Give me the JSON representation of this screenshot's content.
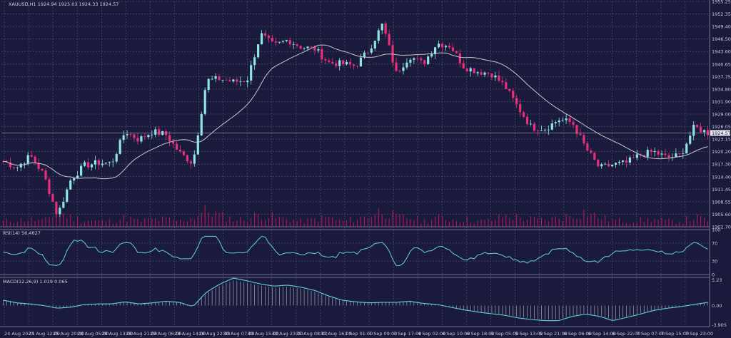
{
  "chart_data": {
    "type": "candlestick",
    "symbol_header": "XAUUSD,H1  1924.94 1925.03 1924.33 1924.57",
    "current_price_label": "1924.57",
    "current_price": 1924.57,
    "colors": {
      "background": "#1a1b3c",
      "grid": "#55577a",
      "bull": "#8fe6e6",
      "bear": "#e8307a",
      "ma": "#c8c8c8",
      "indicator_line": "#62d0e0",
      "volume": "#c2185b",
      "histogram": "#c8c8d0"
    },
    "price_axis": {
      "min": 1902.7,
      "max": 1955.25,
      "ticks": [
        "1955.25",
        "1952.35",
        "1949.40",
        "1946.50",
        "1943.60",
        "1940.65",
        "1937.75",
        "1934.80",
        "1931.90",
        "1929.00",
        "1926.05",
        "1923.15",
        "1920.20",
        "1917.30",
        "1914.40",
        "1911.45",
        "1908.55",
        "1905.60",
        "1902.70"
      ]
    },
    "time_labels": [
      "24 Aug 2023",
      "25 Aug 12:00",
      "25 Aug 20:00",
      "28 Aug 05:00",
      "28 Aug 13:00",
      "28 Aug 21:00",
      "29 Aug 06:00",
      "29 Aug 14:00",
      "29 Aug 22:00",
      "30 Aug 07:00",
      "30 Aug 15:00",
      "30 Aug 23:00",
      "31 Aug 08:00",
      "31 Aug 16:00",
      "1 Sep 01:00",
      "1 Sep 09:00",
      "1 Sep 17:00",
      "4 Sep 02:00",
      "4 Sep 10:00",
      "4 Sep 18:00",
      "5 Sep 05:00",
      "5 Sep 13:00",
      "5 Sep 21:00",
      "6 Sep 06:00",
      "6 Sep 14:00",
      "6 Sep 22:00",
      "7 Sep 07:00",
      "7 Sep 15:00",
      "7 Sep 23:00"
    ],
    "close_anchors": [
      1918.0,
      1916.5,
      1919.3,
      1914.8,
      1905.3,
      1913.8,
      1917.0,
      1917.6,
      1917.5,
      1925.0,
      1923.0,
      1924.9,
      1924.2,
      1920.0,
      1917.5,
      1936.8,
      1937.2,
      1936.5,
      1936.9,
      1947.6,
      1944.9,
      1946.3,
      1944.6,
      1944.2,
      1941.0,
      1940.7,
      1940.2,
      1944.0,
      1950.0,
      1938.5,
      1942.5,
      1940.7,
      1945.5,
      1944.9,
      1940.0,
      1938.9,
      1938.5,
      1935.6,
      1930.5,
      1925.8,
      1925.6,
      1927.7,
      1927.0,
      1921.0,
      1916.4,
      1917.2,
      1917.6,
      1919.5,
      1920.2,
      1918.8,
      1919.4,
      1926.0,
      1924.6
    ],
    "volume_anchors": [
      0.3,
      0.35,
      0.4,
      0.3,
      0.8,
      0.5,
      0.35,
      0.3,
      0.3,
      0.5,
      0.3,
      0.4,
      0.4,
      0.3,
      0.5,
      0.9,
      0.6,
      0.4,
      0.4,
      0.7,
      0.5,
      0.4,
      0.3,
      0.4,
      0.5,
      0.3,
      0.4,
      0.6,
      0.9,
      0.5,
      0.5,
      0.3,
      0.5,
      0.4,
      0.4,
      0.3,
      0.35,
      0.6,
      0.5,
      0.4,
      0.35,
      0.5,
      0.6,
      0.8,
      0.5,
      0.35,
      0.3,
      0.35,
      0.4,
      0.3,
      0.3,
      0.5,
      0.35
    ],
    "rsi": {
      "label": "RSI(14) 56.4627",
      "ticks": [
        "100",
        "70",
        "30",
        "0"
      ],
      "levels": [
        100,
        70,
        30,
        0
      ],
      "min": 0,
      "max": 100,
      "last": 56.46
    },
    "macd": {
      "label": "MACD(12,26,9) 1.019 0.065",
      "ticks": [
        "5.23",
        "0.00",
        "-3.905"
      ],
      "max": 5.23,
      "min": -3.905,
      "anchors": [
        1.0,
        0.5,
        0.3,
        0.0,
        -0.5,
        -0.3,
        0.2,
        0.3,
        0.3,
        0.7,
        0.3,
        0.5,
        0.8,
        0.6,
        -0.2,
        2.5,
        4.0,
        5.1,
        4.6,
        4.0,
        3.6,
        3.8,
        3.4,
        2.8,
        1.8,
        1.0,
        0.7,
        0.5,
        0.6,
        0.6,
        0.8,
        0.4,
        0.2,
        -0.3,
        -0.8,
        -1.2,
        -1.5,
        -1.8,
        -2.3,
        -2.6,
        -2.8,
        -2.8,
        -2.0,
        -1.6,
        -2.0,
        -2.8,
        -2.2,
        -1.6,
        -0.9,
        -0.5,
        -0.2,
        0.2,
        0.6
      ]
    }
  }
}
